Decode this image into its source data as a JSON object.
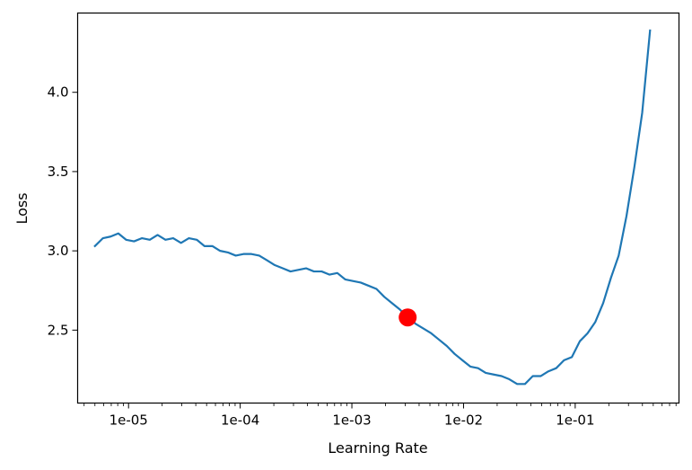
{
  "chart_data": {
    "type": "line",
    "title": "",
    "xlabel": "Learning Rate",
    "ylabel": "Loss",
    "x_scale": "log",
    "xlim": [
      3.5e-06,
      0.85
    ],
    "ylim": [
      2.04,
      4.5
    ],
    "x_ticks": [
      {
        "value": 1e-05,
        "label": "1e-05"
      },
      {
        "value": 0.0001,
        "label": "1e-04"
      },
      {
        "value": 0.001,
        "label": "1e-03"
      },
      {
        "value": 0.01,
        "label": "1e-02"
      },
      {
        "value": 0.1,
        "label": "1e-01"
      }
    ],
    "y_ticks": [
      {
        "value": 2.5,
        "label": "2.5"
      },
      {
        "value": 3.0,
        "label": "3.0"
      },
      {
        "value": 3.5,
        "label": "3.5"
      },
      {
        "value": 4.0,
        "label": "4.0"
      }
    ],
    "grid": false,
    "legend": "none",
    "line_color": "#1f77b4",
    "marker_color": "#ff0000",
    "series": [
      {
        "x": [
          5e-06,
          5.9e-06,
          6.9e-06,
          8.1e-06,
          9.5e-06,
          1.12e-05,
          1.32e-05,
          1.55e-05,
          1.82e-05,
          2.14e-05,
          2.51e-05,
          2.95e-05,
          3.47e-05,
          4.08e-05,
          4.79e-05,
          5.63e-05,
          6.61e-05,
          7.77e-05,
          9.12e-05,
          0.000107,
          0.000126,
          0.000148,
          0.000174,
          0.000204,
          0.00024,
          0.000282,
          0.000331,
          0.000389,
          0.000457,
          0.000537,
          0.000631,
          0.000741,
          0.000871,
          0.00102,
          0.0012,
          0.00141,
          0.00166,
          0.00195,
          0.00229,
          0.00269,
          0.00316,
          0.00372,
          0.00437,
          0.00513,
          0.00603,
          0.00708,
          0.00832,
          0.00977,
          0.0115,
          0.0135,
          0.0158,
          0.0186,
          0.0219,
          0.0257,
          0.0302,
          0.0355,
          0.0417,
          0.049,
          0.0575,
          0.0676,
          0.0794,
          0.0933,
          0.11,
          0.129,
          0.151,
          0.178,
          0.209,
          0.245,
          0.288,
          0.339,
          0.398,
          0.468
        ],
        "y": [
          3.03,
          3.08,
          3.09,
          3.11,
          3.07,
          3.06,
          3.08,
          3.07,
          3.1,
          3.07,
          3.08,
          3.05,
          3.08,
          3.07,
          3.03,
          3.03,
          3.0,
          2.99,
          2.97,
          2.98,
          2.98,
          2.97,
          2.94,
          2.91,
          2.89,
          2.87,
          2.88,
          2.89,
          2.87,
          2.87,
          2.85,
          2.86,
          2.82,
          2.81,
          2.8,
          2.78,
          2.76,
          2.71,
          2.67,
          2.63,
          2.58,
          2.54,
          2.51,
          2.48,
          2.44,
          2.4,
          2.35,
          2.31,
          2.27,
          2.26,
          2.23,
          2.22,
          2.21,
          2.19,
          2.16,
          2.16,
          2.21,
          2.21,
          2.24,
          2.26,
          2.31,
          2.33,
          2.43,
          2.48,
          2.55,
          2.67,
          2.83,
          2.97,
          3.22,
          3.53,
          3.87,
          4.39
        ]
      }
    ],
    "marker": {
      "x": 0.00316,
      "y": 2.58
    }
  }
}
